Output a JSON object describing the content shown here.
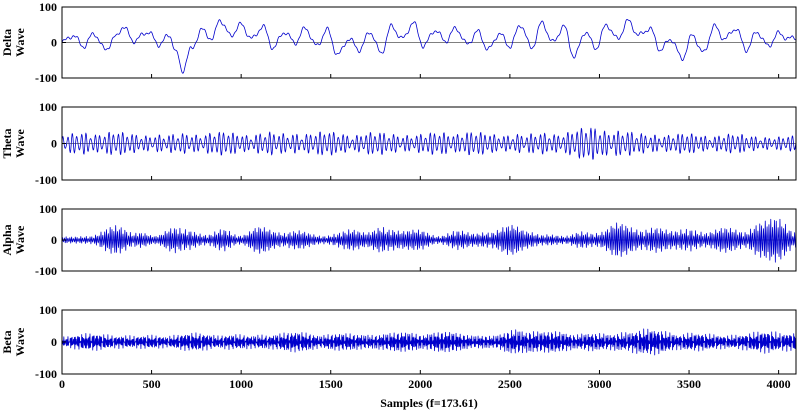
{
  "chart_data": {
    "type": "line",
    "xlabel": "Samples (f=173.61)",
    "xlim": [
      0,
      4097
    ],
    "xticks": [
      0,
      500,
      1000,
      1500,
      2000,
      2500,
      3000,
      3500,
      4000
    ],
    "color": "#0000cc",
    "panels": [
      {
        "ylabel_line1": "Delta",
        "ylabel_line2": "Wave",
        "ylim": [
          -100,
          100
        ],
        "yticks": [
          100,
          0,
          -100
        ],
        "x": [
          0,
          60,
          120,
          180,
          240,
          300,
          340,
          400,
          480,
          540,
          600,
          640,
          670,
          720,
          780,
          840,
          880,
          940,
          1000,
          1060,
          1120,
          1180,
          1240,
          1300,
          1360,
          1420,
          1480,
          1540,
          1600,
          1660,
          1720,
          1780,
          1840,
          1900,
          1960,
          2020,
          2080,
          2140,
          2200,
          2260,
          2320,
          2380,
          2440,
          2500,
          2560,
          2620,
          2680,
          2740,
          2800,
          2860,
          2920,
          2980,
          3040,
          3100,
          3160,
          3220,
          3280,
          3340,
          3400,
          3460,
          3520,
          3580,
          3640,
          3700,
          3760,
          3820,
          3880,
          3940,
          4000,
          4060,
          4097
        ],
        "y": [
          0,
          20,
          -10,
          25,
          -20,
          15,
          45,
          5,
          30,
          -5,
          20,
          -30,
          -80,
          -20,
          35,
          10,
          65,
          20,
          50,
          10,
          45,
          -15,
          30,
          0,
          40,
          -10,
          35,
          -35,
          10,
          -20,
          30,
          -30,
          45,
          10,
          55,
          -10,
          35,
          5,
          40,
          -5,
          30,
          -20,
          25,
          -10,
          50,
          -15,
          55,
          0,
          45,
          -40,
          30,
          -15,
          50,
          10,
          60,
          20,
          40,
          -20,
          10,
          -45,
          20,
          -30,
          45,
          10,
          40,
          -20,
          30,
          -10,
          25,
          10,
          15
        ]
      },
      {
        "ylabel_line1": "Theta",
        "ylabel_line2": "Wave",
        "ylim": [
          -100,
          100
        ],
        "yticks": [
          100,
          0,
          -100
        ],
        "cycles": 160,
        "x": [
          0,
          200,
          400,
          600,
          800,
          1000,
          1200,
          1400,
          1600,
          1800,
          2000,
          2200,
          2400,
          2600,
          2800,
          3000,
          3200,
          3400,
          3600,
          3800,
          4000,
          4097
        ],
        "envelope": [
          25,
          30,
          25,
          30,
          28,
          25,
          35,
          30,
          25,
          30,
          28,
          30,
          25,
          32,
          30,
          40,
          35,
          25,
          22,
          25,
          20,
          20
        ]
      },
      {
        "ylabel_line1": "Alpha",
        "ylabel_line2": "Wave",
        "ylim": [
          -100,
          100
        ],
        "yticks": [
          100,
          0,
          -100
        ],
        "cycles": 400,
        "x": [
          0,
          150,
          300,
          420,
          520,
          650,
          800,
          900,
          1000,
          1100,
          1200,
          1300,
          1450,
          1600,
          1700,
          1800,
          1900,
          2000,
          2100,
          2200,
          2300,
          2400,
          2500,
          2600,
          2700,
          2800,
          2900,
          3000,
          3100,
          3200,
          3300,
          3400,
          3500,
          3600,
          3700,
          3800,
          3900,
          4000,
          4097
        ],
        "envelope": [
          10,
          15,
          45,
          25,
          10,
          45,
          20,
          40,
          15,
          35,
          25,
          30,
          15,
          35,
          20,
          45,
          25,
          30,
          15,
          35,
          20,
          30,
          40,
          25,
          20,
          15,
          30,
          25,
          45,
          35,
          40,
          30,
          45,
          25,
          35,
          30,
          50,
          65,
          30
        ]
      },
      {
        "ylabel_line1": "Beta",
        "ylabel_line2": "Wave",
        "ylim": [
          -100,
          100
        ],
        "yticks": [
          100,
          0,
          -100
        ],
        "cycles": 900,
        "x": [
          0,
          300,
          600,
          900,
          1200,
          1500,
          1800,
          2100,
          2400,
          2550,
          2700,
          3000,
          3200,
          3400,
          3600,
          3800,
          4000,
          4097
        ],
        "envelope": [
          20,
          25,
          22,
          25,
          28,
          25,
          30,
          28,
          25,
          45,
          28,
          30,
          40,
          30,
          25,
          28,
          35,
          25
        ]
      }
    ]
  }
}
